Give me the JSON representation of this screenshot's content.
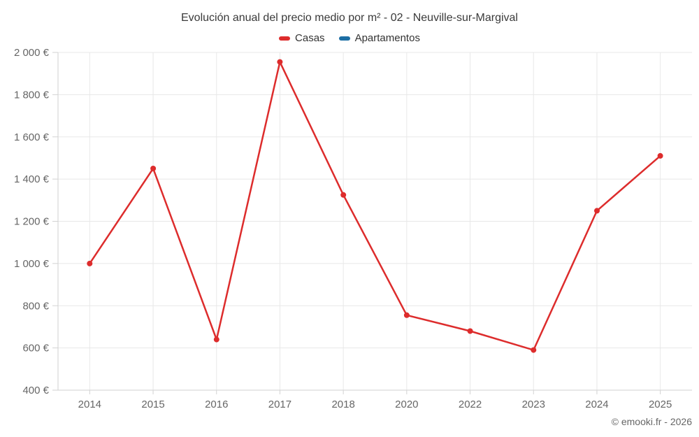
{
  "chart": {
    "title": "Evolución anual del precio medio por m² - 02 - Neuville-sur-Margival",
    "credit": "© emooki.fr - 2026",
    "legend": [
      {
        "label": "Casas",
        "color": "#dd2c2c"
      },
      {
        "label": "Apartamentos",
        "color": "#1c6ea4"
      }
    ],
    "colors": {
      "grid": "#e8e8e8",
      "axis": "#d2d2d2",
      "tick_label": "#666666",
      "title_text": "#3a3a3a",
      "credit_text": "#666666"
    },
    "chart_data": {
      "type": "line",
      "title": "Evolución anual del precio medio por m² - 02 - Neuville-sur-Margival",
      "xlabel": "",
      "ylabel": "",
      "categories": [
        "2014",
        "2015",
        "2016",
        "2017",
        "2018",
        "2020",
        "2022",
        "2023",
        "2024",
        "2025"
      ],
      "series": [
        {
          "name": "Casas",
          "color": "#dd2c2c",
          "values": [
            1000,
            1450,
            640,
            1955,
            1325,
            755,
            680,
            590,
            1250,
            1510
          ]
        },
        {
          "name": "Apartamentos",
          "color": "#1c6ea4",
          "values": []
        }
      ],
      "ylim": [
        400,
        2000
      ],
      "ytick_step": 200,
      "ytick_labels": [
        "400 €",
        "600 €",
        "800 €",
        "1 000 €",
        "1 200 €",
        "1 400 €",
        "1 600 €",
        "1 800 €",
        "2 000 €"
      ],
      "grid": true,
      "legend_position": "top",
      "marker_radius": 4,
      "line_width": 2.5
    }
  }
}
